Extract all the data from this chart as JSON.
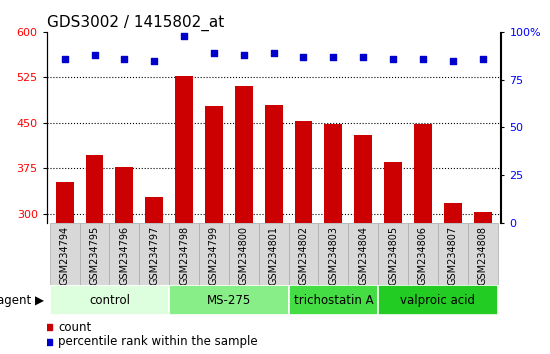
{
  "title": "GDS3002 / 1415802_at",
  "samples": [
    "GSM234794",
    "GSM234795",
    "GSM234796",
    "GSM234797",
    "GSM234798",
    "GSM234799",
    "GSM234800",
    "GSM234801",
    "GSM234802",
    "GSM234803",
    "GSM234804",
    "GSM234805",
    "GSM234806",
    "GSM234807",
    "GSM234808"
  ],
  "counts": [
    352,
    397,
    378,
    328,
    527,
    478,
    510,
    480,
    453,
    448,
    430,
    385,
    448,
    318,
    303
  ],
  "percentiles": [
    86,
    88,
    86,
    85,
    98,
    89,
    88,
    89,
    87,
    87,
    87,
    86,
    86,
    85,
    86
  ],
  "bar_color": "#cc0000",
  "dot_color": "#0000cc",
  "ylim_left": [
    285,
    600
  ],
  "ylim_right": [
    0,
    100
  ],
  "yticks_left": [
    300,
    375,
    450,
    525,
    600
  ],
  "yticks_right": [
    0,
    25,
    50,
    75,
    100
  ],
  "groups": [
    {
      "label": "control",
      "start": 0,
      "end": 4,
      "color": "#ddffdd"
    },
    {
      "label": "MS-275",
      "start": 4,
      "end": 8,
      "color": "#88ee88"
    },
    {
      "label": "trichostatin A",
      "start": 8,
      "end": 11,
      "color": "#44dd44"
    },
    {
      "label": "valproic acid",
      "start": 11,
      "end": 15,
      "color": "#22cc22"
    }
  ],
  "xlabel_agent": "agent",
  "legend_count": "count",
  "legend_pct": "percentile rank within the sample",
  "bar_width": 0.6,
  "title_fontsize": 11,
  "tick_fontsize": 7,
  "label_fontsize": 8.5,
  "group_label_fontsize": 8.5,
  "tickbox_color": "#d8d8d8",
  "tickbox_border": "#aaaaaa"
}
